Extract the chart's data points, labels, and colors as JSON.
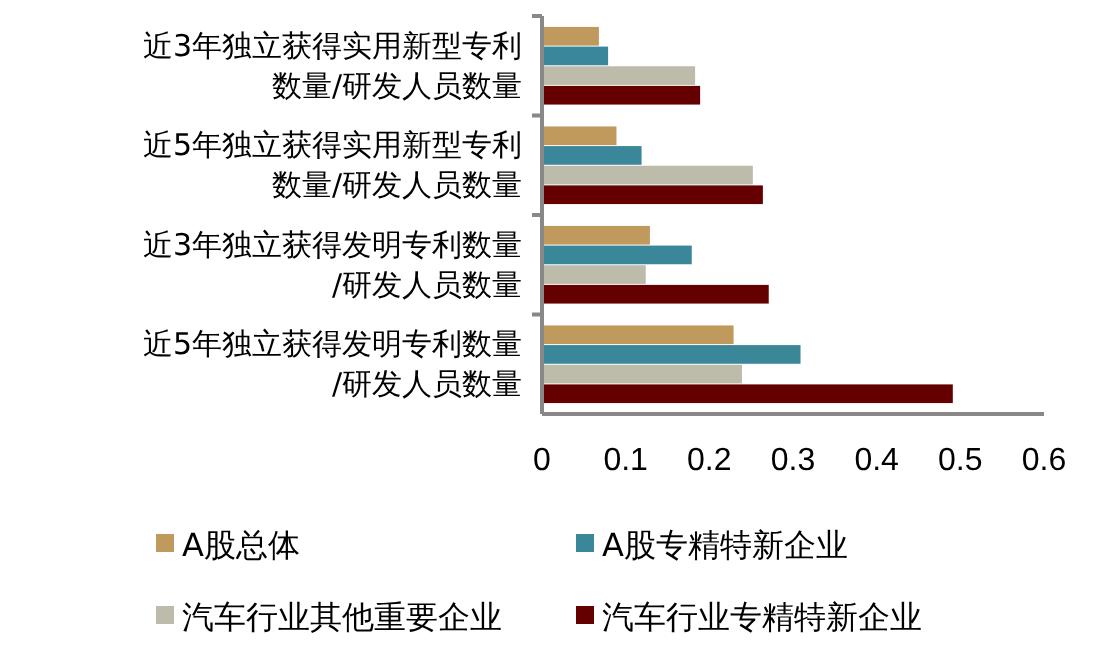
{
  "chart_data": {
    "type": "bar",
    "orientation": "horizontal",
    "categories": [
      "近3年独立获得实用新型专利数量/研发人员数量",
      "近5年独立获得实用新型专利数量/研发人员数量",
      "近3年独立获得发明专利数量/研发人员数量",
      "近5年独立获得发明专利数量/研发人员数量"
    ],
    "series": [
      {
        "name": "A股总体",
        "color": "#c09a5c",
        "values": [
          0.068,
          0.089,
          0.129,
          0.229
        ]
      },
      {
        "name": "A股专精特新企业",
        "color": "#3a8799",
        "values": [
          0.079,
          0.119,
          0.179,
          0.309
        ]
      },
      {
        "name": "汽车行业其他重要企业",
        "color": "#bdbbaa",
        "values": [
          0.183,
          0.252,
          0.124,
          0.239
        ]
      },
      {
        "name": "汽车行业专精特新企业",
        "color": "#650000",
        "values": [
          0.189,
          0.264,
          0.271,
          0.491
        ]
      }
    ],
    "xlim": [
      0,
      0.6
    ],
    "xticks": [
      0,
      0.1,
      0.2,
      0.3,
      0.4,
      0.5,
      0.6
    ],
    "grid": false,
    "legend": "bottom"
  }
}
